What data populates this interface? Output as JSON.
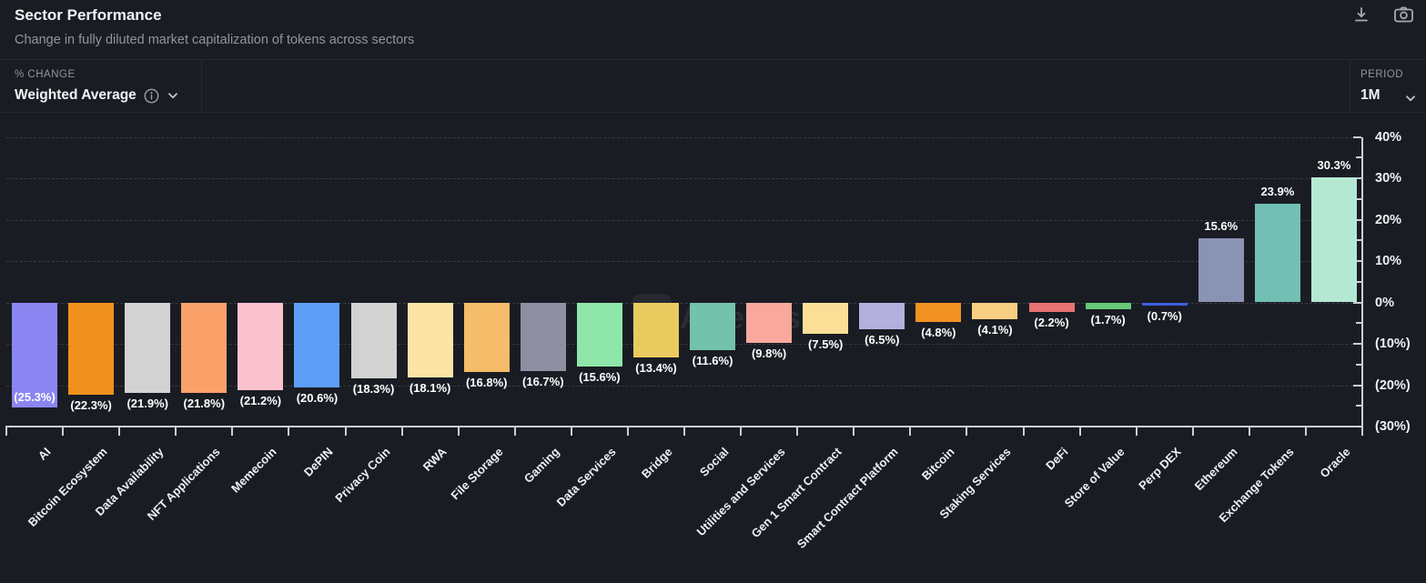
{
  "header": {
    "title": "Sector Performance",
    "subtitle": "Change in fully diluted market capitalization of tokens across sectors"
  },
  "icons": {
    "download": "download-icon",
    "screenshot": "camera-icon",
    "info": "info-circle-icon",
    "chevron": "chevron-down-icon"
  },
  "controls": {
    "metric": {
      "label": "% CHANGE",
      "value": "Weighted Average"
    },
    "period": {
      "label": "PERIOD",
      "value": "1M"
    }
  },
  "chart_data": {
    "type": "bar",
    "title": "Sector Performance",
    "xlabel": "",
    "ylabel": "% change",
    "ylim": [
      -30,
      40
    ],
    "grid": "dashed-horizontal",
    "legend": "none",
    "watermark": "Artemis",
    "xlabel_rotation": -45,
    "yticks": [
      "40%",
      "30%",
      "20%",
      "10%",
      "0%",
      "(10%)",
      "(20%)",
      "(30%)"
    ],
    "ytick_values": [
      40,
      30,
      20,
      10,
      0,
      -10,
      -20,
      -30
    ],
    "categories": [
      "AI",
      "Bitcoin Ecosystem",
      "Data Availability",
      "NFT Applications",
      "Memecoin",
      "DePIN",
      "Privacy Coin",
      "RWA",
      "File Storage",
      "Gaming",
      "Data Services",
      "Bridge",
      "Social",
      "Utilities and Services",
      "Gen 1 Smart Contract",
      "Smart Contract Platform",
      "Bitcoin",
      "Staking Services",
      "DeFi",
      "Store of Value",
      "Perp DEX",
      "Ethereum",
      "Exchange Tokens",
      "Oracle"
    ],
    "values": [
      -25.3,
      -22.3,
      -21.9,
      -21.8,
      -21.2,
      -20.6,
      -18.3,
      -18.1,
      -16.8,
      -16.7,
      -15.6,
      -13.4,
      -11.6,
      -9.8,
      -7.5,
      -6.5,
      -4.8,
      -4.1,
      -2.2,
      -1.7,
      -0.7,
      15.6,
      23.9,
      30.3
    ],
    "value_labels": [
      "(25.3%)",
      "(22.3%)",
      "(21.9%)",
      "(21.8%)",
      "(21.2%)",
      "(20.6%)",
      "(18.3%)",
      "(18.1%)",
      "(16.8%)",
      "(16.7%)",
      "(15.6%)",
      "(13.4%)",
      "(11.6%)",
      "(9.8%)",
      "(7.5%)",
      "(6.5%)",
      "(4.8%)",
      "(4.1%)",
      "(2.2%)",
      "(1.7%)",
      "(0.7%)",
      "15.6%",
      "23.9%",
      "30.3%"
    ],
    "bar_colors": [
      "#8b85f1",
      "#f0911d",
      "#d2d2d2",
      "#f9a169",
      "#fcc2ce",
      "#5c9ef8",
      "#d2d2d2",
      "#fce4a4",
      "#f5bd69",
      "#8f8ea3",
      "#8ee6a9",
      "#e9cb5f",
      "#73c2aa",
      "#faa89e",
      "#fbdf97",
      "#b5afdc",
      "#f19222",
      "#f8cf82",
      "#e77372",
      "#66c878",
      "#3c5ee0",
      "#8b93b4",
      "#72c0b4",
      "#b5e8d2"
    ]
  }
}
